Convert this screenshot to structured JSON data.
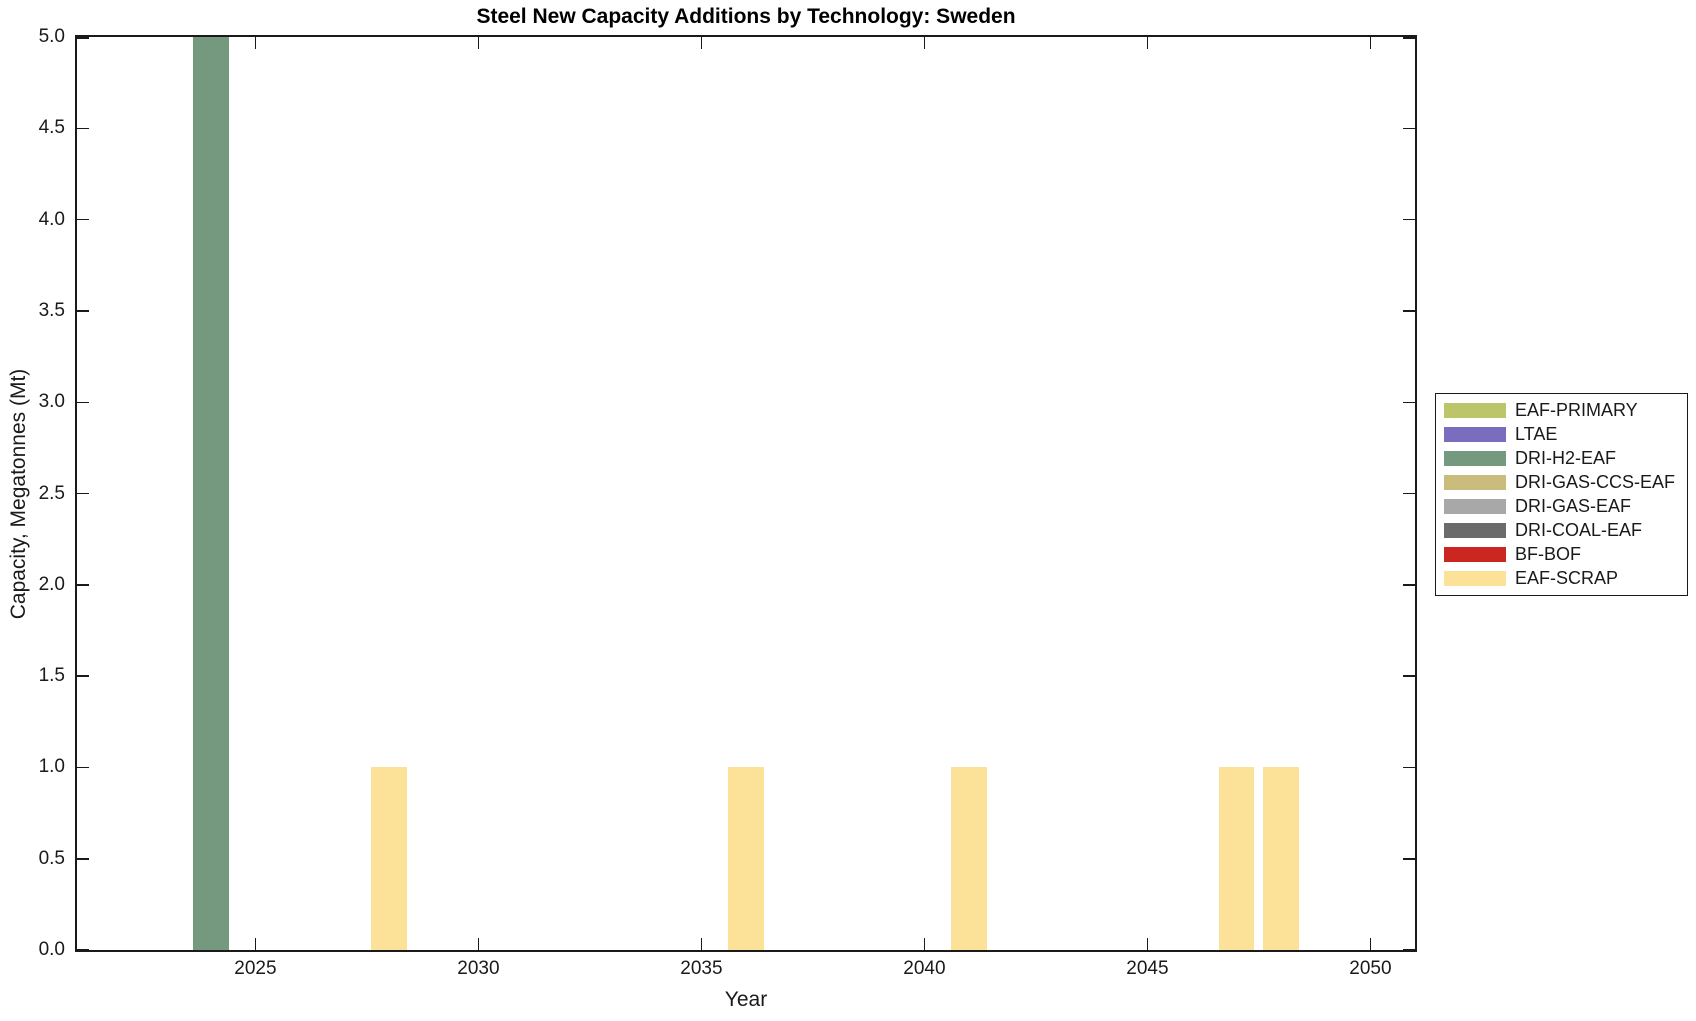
{
  "chart_data": {
    "type": "bar",
    "title": "Steel New Capacity Additions by Technology: Sweden",
    "xlabel": "Year",
    "ylabel": "Capacity, Megatonnes (Mt)",
    "xlim": [
      2021,
      2051
    ],
    "ylim": [
      0,
      5
    ],
    "x_ticks": [
      2025,
      2030,
      2035,
      2040,
      2045,
      2050
    ],
    "x_tick_labels": [
      "2025",
      "2030",
      "2035",
      "2040",
      "2045",
      "2050"
    ],
    "y_ticks": [
      0,
      0.5,
      1,
      1.5,
      2,
      2.5,
      3,
      3.5,
      4,
      4.5,
      5
    ],
    "y_tick_labels": [
      "0.0",
      "0.5",
      "1.0",
      "1.5",
      "2.0",
      "2.5",
      "3.0",
      "3.5",
      "4.0",
      "4.5",
      "5.0"
    ],
    "bar_width_years": 0.8,
    "grid": false,
    "legend_position": "right-outside",
    "axis_color": "#1a1a1a",
    "series": [
      {
        "name": "EAF-PRIMARY",
        "color": "#BCC56A",
        "points": []
      },
      {
        "name": "LTAE",
        "color": "#7A6CBF",
        "points": []
      },
      {
        "name": "DRI-H2-EAF",
        "color": "#75997F",
        "points": [
          {
            "year": 2024,
            "value": 5.0
          }
        ]
      },
      {
        "name": "DRI-GAS-CCS-EAF",
        "color": "#C9BC7C",
        "points": []
      },
      {
        "name": "DRI-GAS-EAF",
        "color": "#A8A8A8",
        "points": []
      },
      {
        "name": "DRI-COAL-EAF",
        "color": "#6B6B6B",
        "points": []
      },
      {
        "name": "BF-BOF",
        "color": "#CB2620",
        "points": []
      },
      {
        "name": "EAF-SCRAP",
        "color": "#FCE299",
        "points": [
          {
            "year": 2028,
            "value": 1.0
          },
          {
            "year": 2036,
            "value": 1.0
          },
          {
            "year": 2041,
            "value": 1.0
          },
          {
            "year": 2047,
            "value": 1.0
          },
          {
            "year": 2048,
            "value": 1.0
          }
        ]
      }
    ]
  }
}
